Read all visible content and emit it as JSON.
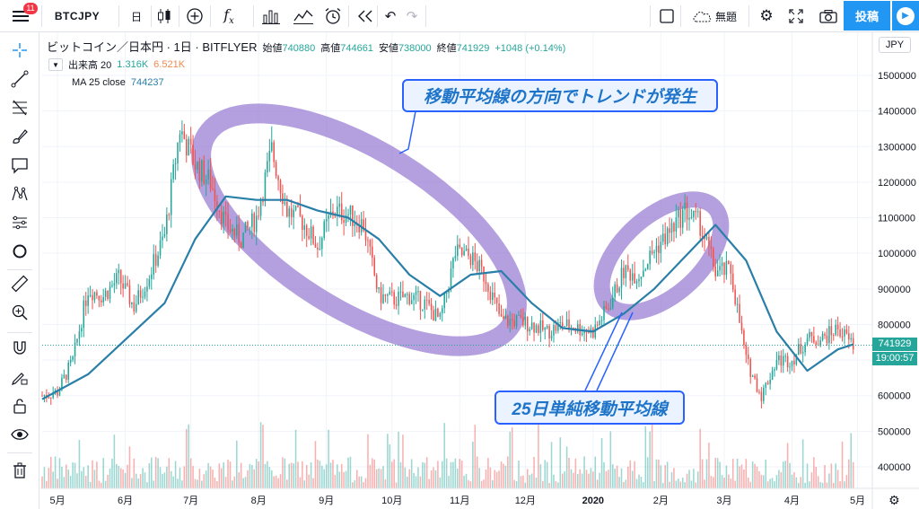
{
  "toolbar": {
    "notification_count": "11",
    "symbol": "BTCJPY",
    "interval": "日",
    "layout_name": "無題",
    "publish_label": "投稿"
  },
  "legend": {
    "title": "ビットコイン／日本円 · 1日 · BITFLYER",
    "open_label": "始値",
    "open_value": "740880",
    "high_label": "高値",
    "high_value": "744661",
    "low_label": "安値",
    "low_value": "738000",
    "close_label": "終値",
    "close_value": "741929",
    "change": "+1048 (+0.14%)",
    "volume_label": "出来高 20",
    "volume_value1": "1.316K",
    "volume_value2": "6.521K",
    "ma_label": "MA 25 close",
    "ma_value": "744237"
  },
  "price_axis": {
    "currency": "JPY",
    "last_price": "741929",
    "countdown": "19:00:57"
  },
  "annotations": {
    "trend_note": "移動平均線の方向でトレンドが発生",
    "ma_note": "25日単純移動平均線"
  },
  "colors": {
    "up": "#26a69a",
    "down": "#ef5350",
    "ma": "#2a7fa8",
    "highlight": "#9b7fd4",
    "accent": "#2196f3",
    "callout_border": "#2962ff",
    "callout_text": "#1e74c8"
  },
  "chart_data": {
    "type": "candlestick",
    "y_axis": {
      "range": [
        350000,
        1560000
      ],
      "ticks": [
        400000,
        500000,
        600000,
        700000,
        800000,
        900000,
        1000000,
        1100000,
        1200000,
        1300000,
        1400000,
        1500000
      ],
      "tick_labels": [
        "400000",
        "500000",
        "600000",
        "700000",
        "800000",
        "900000",
        "1000000",
        "1100000",
        "1200000",
        "1300000",
        "1400000",
        "1500000"
      ]
    },
    "x_axis": {
      "labels": [
        "5月",
        "6月",
        "7月",
        "8月",
        "9月",
        "10月",
        "11月",
        "12月",
        "2020",
        "2月",
        "3月",
        "4月",
        "5月"
      ],
      "label_dates": [
        "2019-05-01",
        "2019-06-01",
        "2019-07-01",
        "2019-08-01",
        "2019-09-01",
        "2019-10-01",
        "2019-11-01",
        "2019-12-01",
        "2020-01-01",
        "2020-02-01",
        "2020-03-01",
        "2020-04-01",
        "2020-05-01"
      ],
      "start_date": "2019-04-24",
      "end_date": "2020-05-02"
    },
    "close_series_weekly": [
      {
        "date": "2019-04-24",
        "close": 600000
      },
      {
        "date": "2019-05-01",
        "close": 610000
      },
      {
        "date": "2019-05-08",
        "close": 700000
      },
      {
        "date": "2019-05-15",
        "close": 900000
      },
      {
        "date": "2019-05-22",
        "close": 880000
      },
      {
        "date": "2019-05-29",
        "close": 930000
      },
      {
        "date": "2019-06-05",
        "close": 850000
      },
      {
        "date": "2019-06-12",
        "close": 940000
      },
      {
        "date": "2019-06-19",
        "close": 1050000
      },
      {
        "date": "2019-06-26",
        "close": 1350000
      },
      {
        "date": "2019-07-03",
        "close": 1250000
      },
      {
        "date": "2019-07-10",
        "close": 1200000
      },
      {
        "date": "2019-07-17",
        "close": 1080000
      },
      {
        "date": "2019-07-24",
        "close": 1040000
      },
      {
        "date": "2019-07-31",
        "close": 1100000
      },
      {
        "date": "2019-08-07",
        "close": 1290000
      },
      {
        "date": "2019-08-14",
        "close": 1120000
      },
      {
        "date": "2019-08-21",
        "close": 1090000
      },
      {
        "date": "2019-08-28",
        "close": 1020000
      },
      {
        "date": "2019-09-04",
        "close": 1120000
      },
      {
        "date": "2019-09-11",
        "close": 1110000
      },
      {
        "date": "2019-09-18",
        "close": 1080000
      },
      {
        "date": "2019-09-25",
        "close": 880000
      },
      {
        "date": "2019-10-02",
        "close": 870000
      },
      {
        "date": "2019-10-09",
        "close": 880000
      },
      {
        "date": "2019-10-16",
        "close": 860000
      },
      {
        "date": "2019-10-23",
        "close": 810000
      },
      {
        "date": "2019-10-30",
        "close": 1000000
      },
      {
        "date": "2019-11-06",
        "close": 990000
      },
      {
        "date": "2019-11-13",
        "close": 930000
      },
      {
        "date": "2019-11-20",
        "close": 810000
      },
      {
        "date": "2019-11-27",
        "close": 810000
      },
      {
        "date": "2019-12-04",
        "close": 800000
      },
      {
        "date": "2019-12-11",
        "close": 780000
      },
      {
        "date": "2019-12-18",
        "close": 800000
      },
      {
        "date": "2019-12-25",
        "close": 790000
      },
      {
        "date": "2020-01-01",
        "close": 780000
      },
      {
        "date": "2020-01-08",
        "close": 850000
      },
      {
        "date": "2020-01-15",
        "close": 950000
      },
      {
        "date": "2020-01-22",
        "close": 940000
      },
      {
        "date": "2020-01-29",
        "close": 1010000
      },
      {
        "date": "2020-02-05",
        "close": 1060000
      },
      {
        "date": "2020-02-12",
        "close": 1120000
      },
      {
        "date": "2020-02-19",
        "close": 1080000
      },
      {
        "date": "2020-02-26",
        "close": 950000
      },
      {
        "date": "2020-03-04",
        "close": 950000
      },
      {
        "date": "2020-03-11",
        "close": 700000
      },
      {
        "date": "2020-03-18",
        "close": 600000
      },
      {
        "date": "2020-03-25",
        "close": 700000
      },
      {
        "date": "2020-04-01",
        "close": 700000
      },
      {
        "date": "2020-04-08",
        "close": 760000
      },
      {
        "date": "2020-04-15",
        "close": 760000
      },
      {
        "date": "2020-04-22",
        "close": 790000
      },
      {
        "date": "2020-04-29",
        "close": 741929
      }
    ],
    "ma25_series": [
      {
        "date": "2019-04-24",
        "value": 590000
      },
      {
        "date": "2019-05-15",
        "value": 660000
      },
      {
        "date": "2019-06-05",
        "value": 780000
      },
      {
        "date": "2019-06-19",
        "value": 860000
      },
      {
        "date": "2019-07-03",
        "value": 1040000
      },
      {
        "date": "2019-07-17",
        "value": 1160000
      },
      {
        "date": "2019-07-31",
        "value": 1150000
      },
      {
        "date": "2019-08-14",
        "value": 1150000
      },
      {
        "date": "2019-08-28",
        "value": 1120000
      },
      {
        "date": "2019-09-11",
        "value": 1100000
      },
      {
        "date": "2019-09-25",
        "value": 1040000
      },
      {
        "date": "2019-10-09",
        "value": 940000
      },
      {
        "date": "2019-10-23",
        "value": 880000
      },
      {
        "date": "2019-11-06",
        "value": 940000
      },
      {
        "date": "2019-11-20",
        "value": 950000
      },
      {
        "date": "2019-12-04",
        "value": 860000
      },
      {
        "date": "2019-12-18",
        "value": 790000
      },
      {
        "date": "2020-01-01",
        "value": 780000
      },
      {
        "date": "2020-01-15",
        "value": 830000
      },
      {
        "date": "2020-01-29",
        "value": 900000
      },
      {
        "date": "2020-02-12",
        "value": 990000
      },
      {
        "date": "2020-02-26",
        "value": 1080000
      },
      {
        "date": "2020-03-11",
        "value": 980000
      },
      {
        "date": "2020-03-25",
        "value": 780000
      },
      {
        "date": "2020-04-08",
        "value": 670000
      },
      {
        "date": "2020-04-22",
        "value": 730000
      },
      {
        "date": "2020-04-29",
        "value": 744237
      }
    ],
    "volume_range": [
      0,
      6521
    ],
    "legend": [
      "出来高 20",
      "MA 25 close"
    ],
    "grid": true
  }
}
